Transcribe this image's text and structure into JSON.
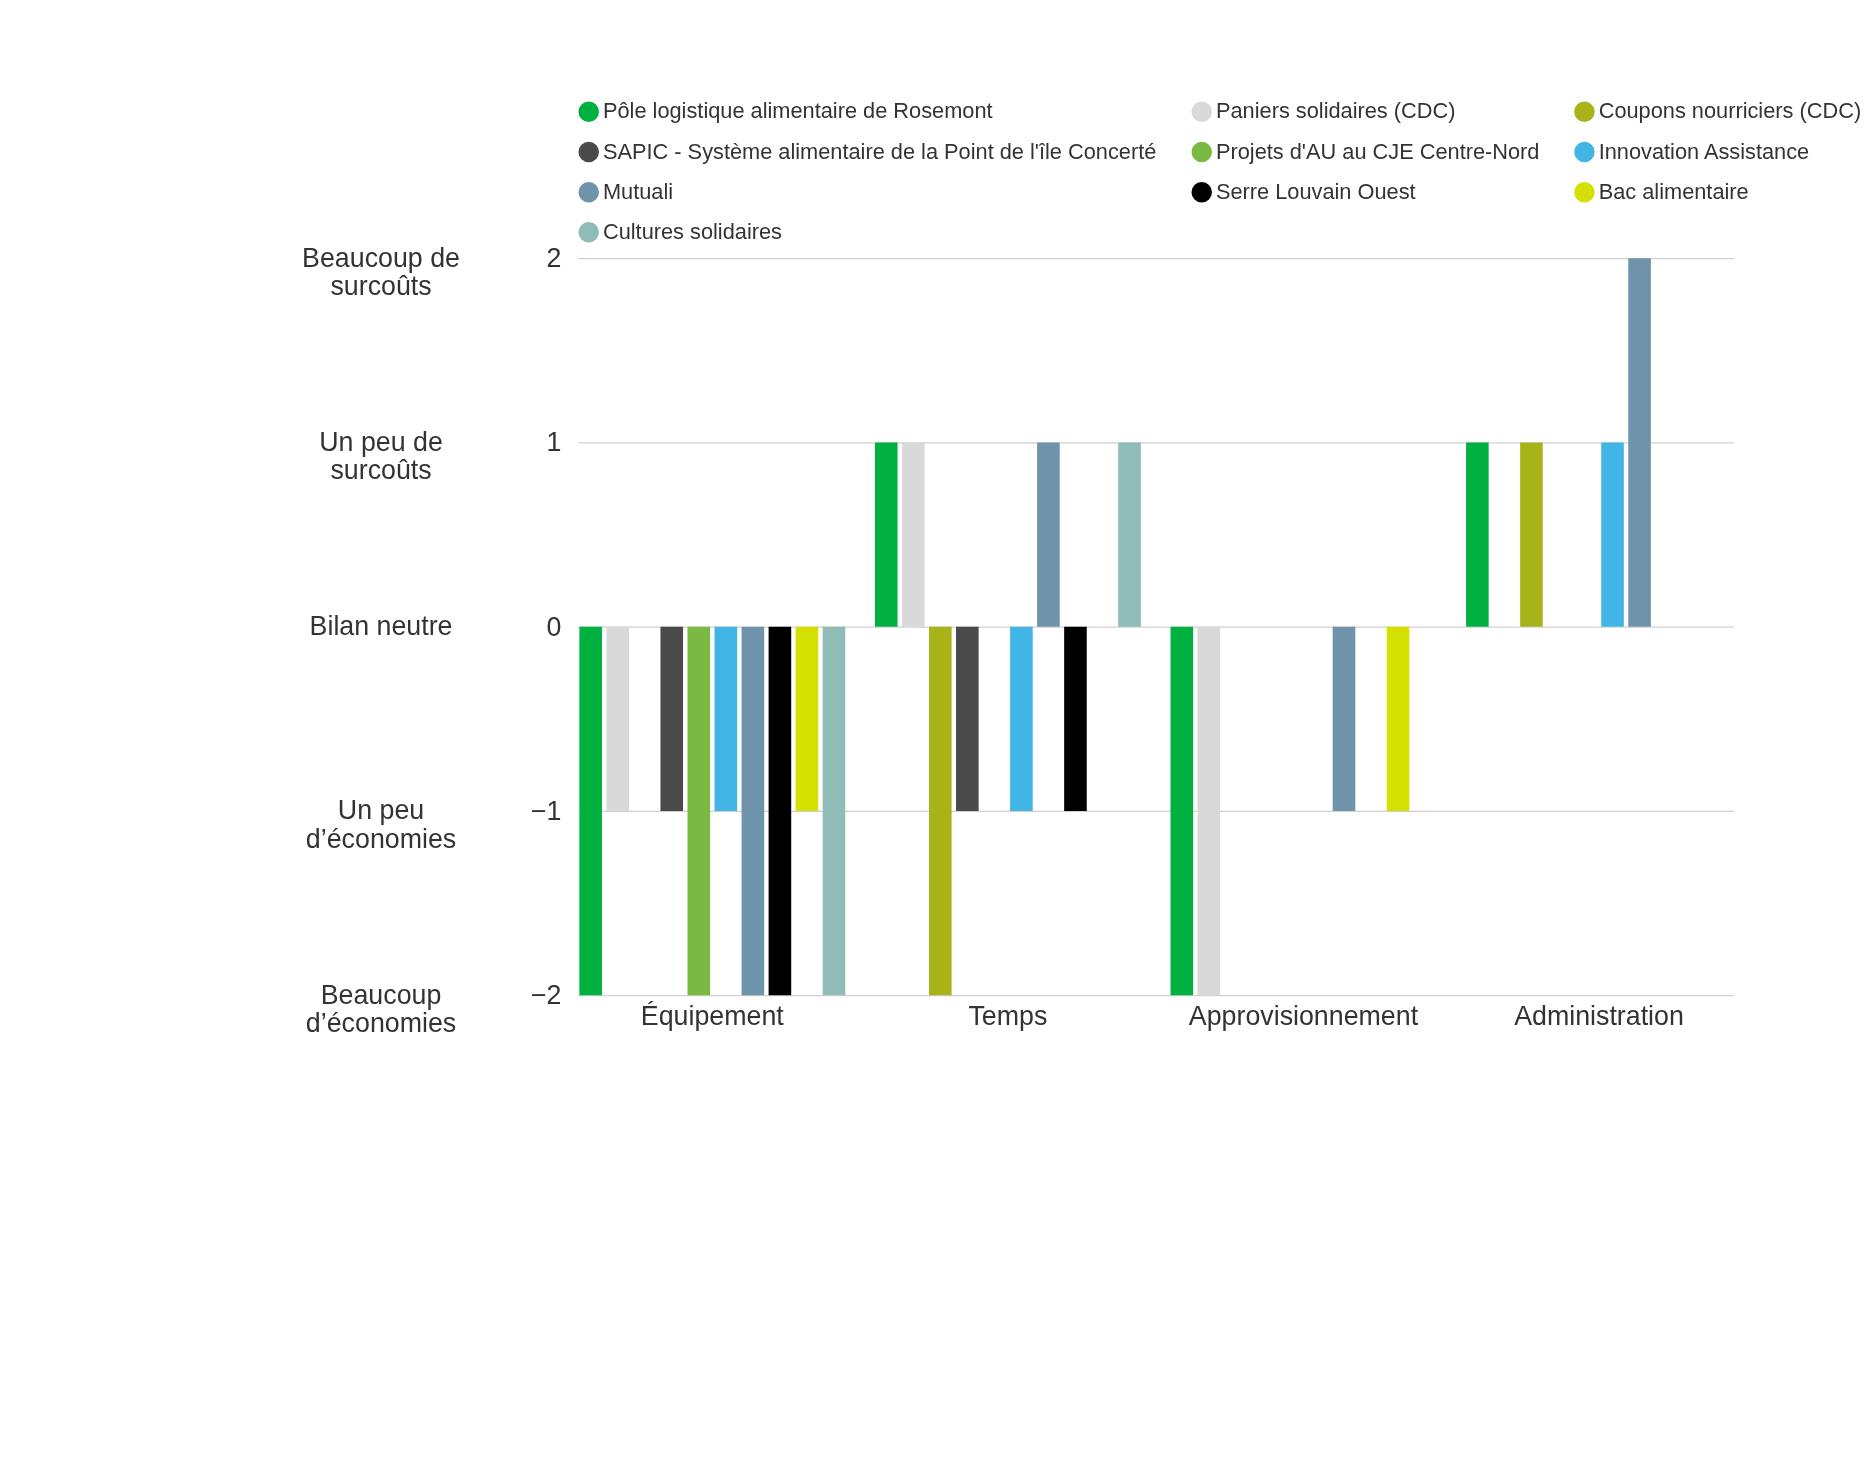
{
  "chart_data": {
    "type": "bar",
    "categories": [
      "Équipement",
      "Temps",
      "Approvisionnement",
      "Administration"
    ],
    "series": [
      {
        "name": "Pôle logistique alimentaire de Rosemont",
        "color": "#00b140",
        "values": [
          -2,
          1,
          -2,
          1
        ]
      },
      {
        "name": "Paniers solidaires (CDC)",
        "color": "#d9d9d9",
        "values": [
          -1,
          1,
          -2,
          null
        ]
      },
      {
        "name": "Coupons nourriciers (CDC)",
        "color": "#a8b31a",
        "values": [
          null,
          -2,
          null,
          1
        ]
      },
      {
        "name": "SAPIC - Système alimentaire de la Point de l'île Concerté",
        "color": "#4a4a4a",
        "values": [
          -1,
          -1,
          null,
          null
        ]
      },
      {
        "name": "Projets d'AU au CJE Centre-Nord",
        "color": "#7aba42",
        "values": [
          -2,
          null,
          null,
          null
        ]
      },
      {
        "name": "Innovation Assistance",
        "color": "#41b5e6",
        "values": [
          -1,
          -1,
          null,
          1
        ]
      },
      {
        "name": "Mutuali",
        "color": "#6e93ab",
        "values": [
          -2,
          1,
          -1,
          2
        ]
      },
      {
        "name": "Serre Louvain Ouest",
        "color": "#000000",
        "values": [
          -2,
          -1,
          null,
          null
        ]
      },
      {
        "name": "Bac alimentaire",
        "color": "#d4e000",
        "values": [
          -1,
          null,
          -1,
          null
        ]
      },
      {
        "name": "Cultures solidaires",
        "color": "#8fbcb7",
        "values": [
          -2,
          1,
          null,
          null
        ]
      }
    ],
    "ylim": [
      -2,
      2
    ],
    "yticks": [
      -2,
      -1,
      0,
      1,
      2
    ],
    "grid": "y",
    "legend": "top",
    "annotations": [
      "Beaucoup de surcoûts",
      "Un peu de surcoûts",
      "Bilan neutre",
      "Un peu d’économies",
      "Beaucoup d’économies"
    ]
  }
}
